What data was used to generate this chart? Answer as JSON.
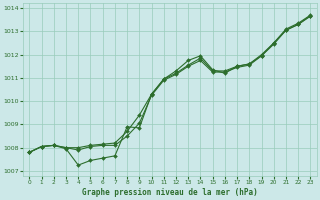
{
  "title": "Graphe pression niveau de la mer (hPa)",
  "bg_color": "#cce8e8",
  "grid_color": "#99ccbb",
  "line_color": "#2d6e2d",
  "marker_color": "#2d6e2d",
  "xlim": [
    -0.5,
    23.5
  ],
  "ylim": [
    1006.8,
    1014.2
  ],
  "xticks": [
    0,
    1,
    2,
    3,
    4,
    5,
    6,
    7,
    8,
    9,
    10,
    11,
    12,
    13,
    14,
    15,
    16,
    17,
    18,
    19,
    20,
    21,
    22,
    23
  ],
  "yticks": [
    1007,
    1008,
    1009,
    1010,
    1011,
    1012,
    1013,
    1014
  ],
  "series1_x": [
    0,
    1,
    2,
    3,
    4,
    5,
    6,
    7,
    8,
    9,
    10,
    11,
    12,
    13,
    14,
    15,
    16,
    17,
    18,
    19,
    20,
    21,
    22,
    23
  ],
  "series1_y": [
    1007.8,
    1008.05,
    1008.1,
    1008.0,
    1008.0,
    1008.1,
    1008.15,
    1008.2,
    1008.7,
    1009.4,
    1010.3,
    1010.95,
    1011.2,
    1011.55,
    1011.85,
    1011.3,
    1011.3,
    1011.5,
    1011.6,
    1012.0,
    1012.5,
    1013.1,
    1013.35,
    1013.7
  ],
  "series2_x": [
    0,
    1,
    2,
    3,
    4,
    5,
    6,
    7,
    8,
    9,
    10,
    11,
    12,
    13,
    14,
    15,
    16,
    17,
    18,
    19,
    20,
    21,
    22,
    23
  ],
  "series2_y": [
    1007.8,
    1008.05,
    1008.1,
    1008.0,
    1007.9,
    1008.05,
    1008.1,
    1008.1,
    1008.5,
    1009.05,
    1010.25,
    1010.9,
    1011.15,
    1011.5,
    1011.75,
    1011.25,
    1011.25,
    1011.45,
    1011.55,
    1011.95,
    1012.45,
    1013.05,
    1013.3,
    1013.68
  ],
  "series3_x": [
    0,
    1,
    2,
    3,
    4,
    5,
    6,
    7,
    8,
    9,
    10,
    11,
    12,
    13,
    14,
    15,
    16,
    17,
    18,
    19,
    20,
    21,
    22,
    23
  ],
  "series3_y": [
    1007.8,
    1008.05,
    1008.1,
    1007.95,
    1007.25,
    1007.45,
    1007.55,
    1007.65,
    1008.9,
    1008.85,
    1010.3,
    1010.95,
    1011.3,
    1011.75,
    1011.95,
    1011.35,
    1011.2,
    1011.5,
    1011.6,
    1011.95,
    1012.5,
    1013.05,
    1013.3,
    1013.65
  ]
}
